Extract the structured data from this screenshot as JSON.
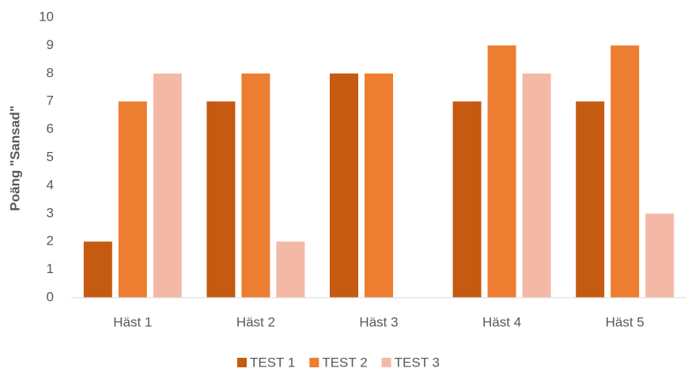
{
  "chart_data": {
    "type": "bar",
    "ylabel": "Poäng \"Sansad\"",
    "categories": [
      "Häst 1",
      "Häst 2",
      "Häst 3",
      "Häst 4",
      "Häst 5"
    ],
    "series": [
      {
        "name": "TEST 1",
        "color": "#c55a11",
        "values": [
          2,
          7,
          8,
          7,
          7
        ]
      },
      {
        "name": "TEST 2",
        "color": "#ed7d31",
        "values": [
          7,
          8,
          8,
          9,
          9
        ]
      },
      {
        "name": "TEST 3",
        "color": "#f4b9a6",
        "values": [
          8,
          2,
          0,
          8,
          3
        ]
      }
    ],
    "ylim": [
      0,
      10
    ],
    "yticks": [
      0,
      1,
      2,
      3,
      4,
      5,
      6,
      7,
      8,
      9,
      10
    ],
    "grid": false,
    "legend": "bottom"
  }
}
